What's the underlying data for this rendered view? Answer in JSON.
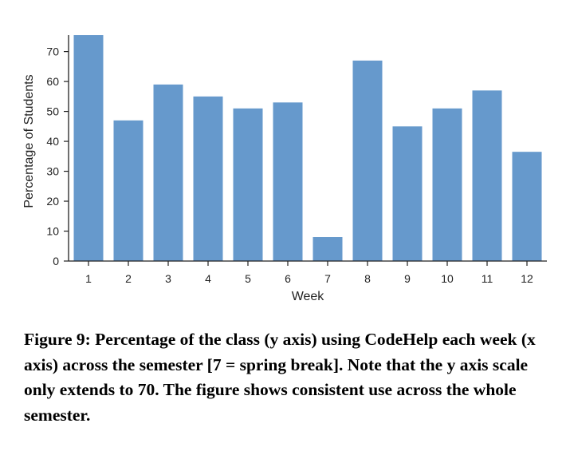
{
  "chart_data": {
    "type": "bar",
    "categories": [
      "1",
      "2",
      "3",
      "4",
      "5",
      "6",
      "7",
      "8",
      "9",
      "10",
      "11",
      "12"
    ],
    "values": [
      75.5,
      47,
      59,
      55,
      51,
      53,
      8,
      67,
      45,
      51,
      57,
      36.5
    ],
    "xlabel": "Week",
    "ylabel": "Percentage of Students",
    "ylim": [
      0,
      75.5
    ],
    "yticks": [
      0,
      10,
      20,
      30,
      40,
      50,
      60,
      70
    ],
    "grid": false,
    "legend": "none",
    "bar_color": "#6699cc"
  },
  "caption": {
    "text": "Figure 9: Percentage of the class (y axis) using CodeHelp each week (x axis) across the semester [7 = spring break]. Note that the y axis scale only extends to 70. The figure shows consistent use across the whole semester."
  }
}
